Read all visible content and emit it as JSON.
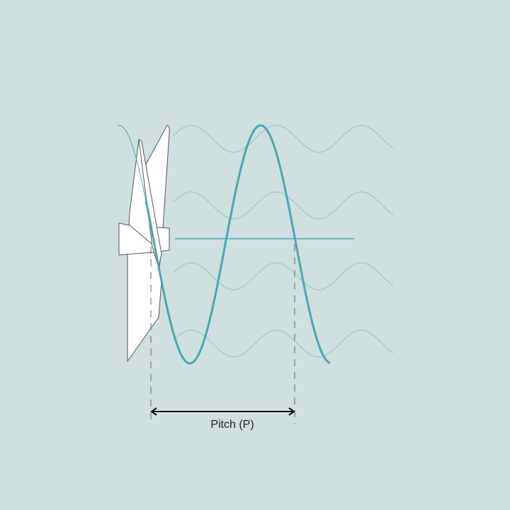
{
  "label": "Pitch (P)",
  "colors": {
    "background": "#cfe0e0",
    "helix": "#4fa3b4",
    "wave": "#a9c9cc",
    "axis": "#3f97a8",
    "propeller": "#ffffff",
    "outline": "#555555"
  },
  "icons": [
    "propeller-icon",
    "double-arrow-icon"
  ]
}
